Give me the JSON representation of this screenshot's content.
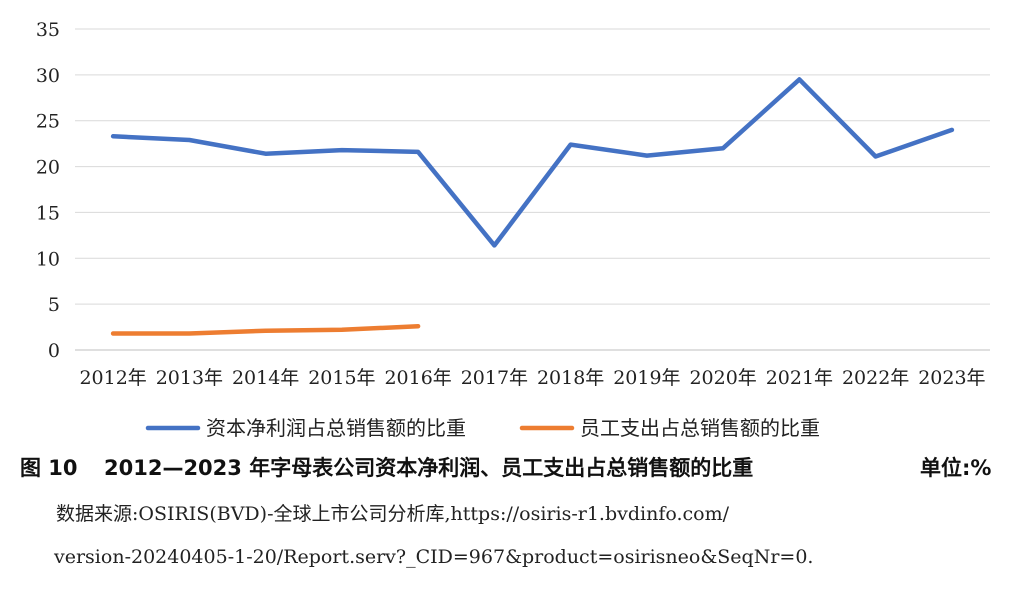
{
  "chart_data": {
    "type": "line",
    "categories": [
      "2012年",
      "2013年",
      "2014年",
      "2015年",
      "2016年",
      "2017年",
      "2018年",
      "2019年",
      "2020年",
      "2021年",
      "2022年",
      "2023年"
    ],
    "series": [
      {
        "name": "资本净利润占总销售额的比重",
        "color": "#4472C4",
        "values": [
          23.3,
          22.9,
          21.4,
          21.8,
          21.6,
          11.4,
          22.4,
          21.2,
          22.0,
          29.5,
          21.1,
          24.0
        ]
      },
      {
        "name": "员工支出占总销售额的比重",
        "color": "#ED7D31",
        "values": [
          1.8,
          1.8,
          2.1,
          2.2,
          2.6,
          null,
          null,
          null,
          null,
          null,
          null,
          null
        ]
      }
    ],
    "yticks": [
      "0",
      "5",
      "10",
      "15",
      "20",
      "25",
      "30",
      "35"
    ],
    "ylim": [
      0,
      35
    ],
    "grid": true,
    "legend": "bottom"
  },
  "caption": {
    "figure_number": "图 10",
    "title": "2012—2023 年字母表公司资本净利润、员工支出占总销售额的比重",
    "unit": "单位:%"
  },
  "source": {
    "line1": "数据来源:OSIRIS(BVD)-全球上市公司分析库,https://osiris-r1.bvdinfo.com/",
    "line2": "version-20240405-1-20/Report.serv?_CID=967&product=osirisneo&SeqNr=0."
  }
}
